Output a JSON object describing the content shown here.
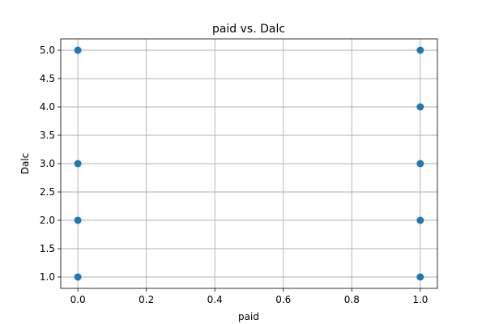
{
  "chart_data": {
    "type": "scatter",
    "title": "paid vs. Dalc",
    "xlabel": "paid",
    "ylabel": "Dalc",
    "xlim": [
      -0.05,
      1.05
    ],
    "ylim": [
      0.8,
      5.2
    ],
    "xticks": [
      0.0,
      0.2,
      0.4,
      0.6,
      0.8,
      1.0
    ],
    "xtick_labels": [
      "0.0",
      "0.2",
      "0.4",
      "0.6",
      "0.8",
      "1.0"
    ],
    "yticks": [
      1.0,
      1.5,
      2.0,
      2.5,
      3.0,
      3.5,
      4.0,
      4.5,
      5.0
    ],
    "ytick_labels": [
      "1.0",
      "1.5",
      "2.0",
      "2.5",
      "3.0",
      "3.5",
      "4.0",
      "4.5",
      "5.0"
    ],
    "grid": true,
    "marker_color": "#1f77b4",
    "points": [
      {
        "x": 0,
        "y": 1
      },
      {
        "x": 0,
        "y": 2
      },
      {
        "x": 0,
        "y": 3
      },
      {
        "x": 0,
        "y": 5
      },
      {
        "x": 1,
        "y": 1
      },
      {
        "x": 1,
        "y": 2
      },
      {
        "x": 1,
        "y": 3
      },
      {
        "x": 1,
        "y": 4
      },
      {
        "x": 1,
        "y": 5
      }
    ]
  }
}
